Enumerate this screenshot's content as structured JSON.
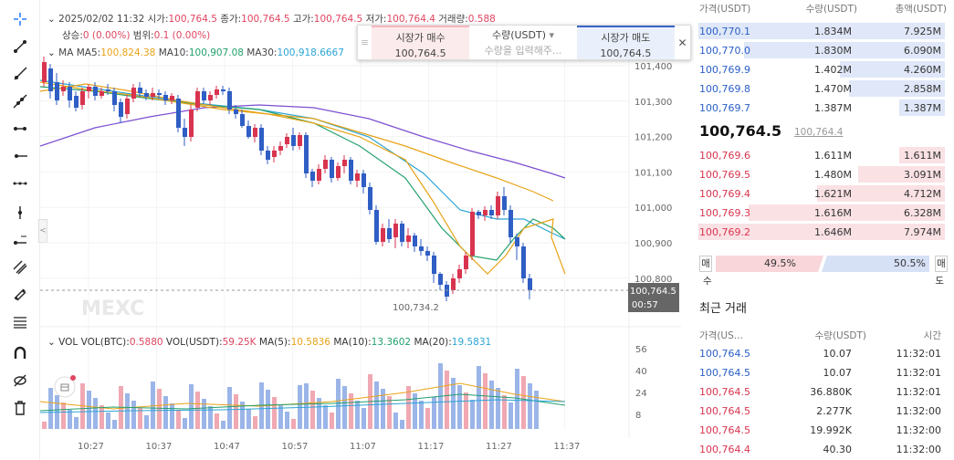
{
  "toolbar": {
    "icons": [
      "crosshair-icon",
      "trend-line-icon",
      "ray-icon",
      "extended-line-icon",
      "horizontal-line-icon",
      "horizontal-ray-icon",
      "vertical-line-icon",
      "price-range-icon",
      "parallel-channel-icon",
      "pitchfork-icon",
      "fib-icon",
      "magnet-icon",
      "hide-icon",
      "trash-icon"
    ]
  },
  "info": {
    "date": "2025/02/02 11:32",
    "open_label": "시가:",
    "open": "100,764.5",
    "close_label": "종가:",
    "close": "100,764.5",
    "high_label": "고가:",
    "high": "100,764.5",
    "low_label": "저가:",
    "low": "100,764.4",
    "vol_label": "거래량:",
    "vol": "0.588",
    "change_label": "상승:",
    "change": "0 (0.00%)",
    "range_label": "범위:",
    "range": "0.1 (0.00%)",
    "ma_label": "MA",
    "ma5_label": "MA5:",
    "ma5": "100,824.38",
    "ma10_label": "MA10:",
    "ma10": "100,907.08",
    "ma30_label": "MA30:",
    "ma30": "100,918.6667",
    "vol_name": "VOL",
    "volbtc_label": "VOL(BTC):",
    "volbtc": "0.5880",
    "volusdt_label": "VOL(USDT):",
    "volusdt": "59.25K",
    "vma5_label": "MA(5):",
    "vma5": "10.5836",
    "vma10_label": "MA(10):",
    "vma10": "13.3602",
    "vma20_label": "MA(20):",
    "vma20": "19.5831"
  },
  "order_box": {
    "buy_label": "시장가 매수",
    "buy_price": "100,764.5",
    "qty_label": "수량(USDT)",
    "qty_placeholder": "수량을 입력해주...",
    "sell_label": "시장가 매도",
    "sell_price": "100,764.5"
  },
  "price_axis": [
    "101,400",
    "101,300",
    "101,200",
    "101,100",
    "101,000",
    "100,900",
    "100,800"
  ],
  "current_tag": {
    "price": "100,764.5",
    "time": "00:57"
  },
  "low_marker": "100,734.2",
  "vol_axis": [
    "56",
    "40",
    "24",
    "8"
  ],
  "time_axis": [
    "10:27",
    "10:37",
    "10:47",
    "10:57",
    "11:07",
    "11:17",
    "11:27",
    "11:37"
  ],
  "watermark": "MEXC",
  "orderbook": {
    "headers": {
      "price": "가격(USDT)",
      "qty": "수량(USDT)",
      "total": "총액(USDT)"
    },
    "asks": [
      {
        "price": "100,770.1",
        "qty": "1.834M",
        "total": "7.925M"
      },
      {
        "price": "100,770.0",
        "qty": "1.830M",
        "total": "6.090M"
      },
      {
        "price": "100,769.9",
        "qty": "1.402M",
        "total": "4.260M"
      },
      {
        "price": "100,769.8",
        "qty": "1.470M",
        "total": "2.858M"
      },
      {
        "price": "100,769.7",
        "qty": "1.387M",
        "total": "1.387M"
      }
    ],
    "mid": "100,764.5",
    "mid_sub": "100,764.4",
    "bids": [
      {
        "price": "100,769.6",
        "qty": "1.611M",
        "total": "1.611M"
      },
      {
        "price": "100,769.5",
        "qty": "1.480M",
        "total": "3.091M"
      },
      {
        "price": "100,769.4",
        "qty": "1.621M",
        "total": "4.712M"
      },
      {
        "price": "100,769.3",
        "qty": "1.616M",
        "total": "6.328M"
      },
      {
        "price": "100,769.2",
        "qty": "1.646M",
        "total": "7.974M"
      }
    ],
    "ratio": {
      "buy_pct": "49.5%",
      "sell_pct": "50.5%",
      "buy_top": "매",
      "buy_bottom": "수",
      "sell_top": "매",
      "sell_bottom": "도"
    }
  },
  "trades": {
    "title": "최근 거래",
    "headers": {
      "price": "가격(US... ",
      "qty": "수량(USDT)",
      "time": "시간"
    },
    "rows": [
      {
        "price": "100,764.5",
        "qty": "10.07",
        "time": "11:32:01",
        "side": "blue"
      },
      {
        "price": "100,764.5",
        "qty": "10.07",
        "time": "11:32:01",
        "side": "blue"
      },
      {
        "price": "100,764.5",
        "qty": "36.880K",
        "time": "11:32:01",
        "side": "red"
      },
      {
        "price": "100,764.5",
        "qty": "2.277K",
        "time": "11:32:00",
        "side": "red"
      },
      {
        "price": "100,764.5",
        "qty": "19.992K",
        "time": "11:32:00",
        "side": "red"
      },
      {
        "price": "100,764.4",
        "qty": "40.30",
        "time": "11:32:00",
        "side": "red"
      }
    ]
  }
}
